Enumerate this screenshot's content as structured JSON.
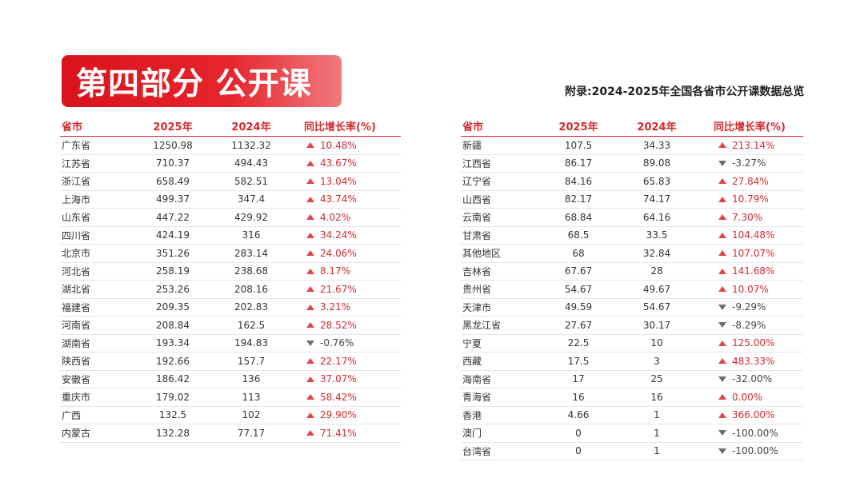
{
  "banner": {
    "title": "第四部分 公开课"
  },
  "subtitle": "附录:2024-2025年全国各省市公开课数据总览",
  "columns": {
    "name": "省市",
    "y2025": "2025年",
    "y2024": "2024年",
    "rate": "同比增长率(%)"
  },
  "colors": {
    "accent": "#d42a2f",
    "up_icon": "#e24449",
    "down_icon": "#6d6d6d"
  },
  "left_rows": [
    {
      "name": "广东省",
      "y2025": "1250.98",
      "y2024": "1132.32",
      "rate": "10.48%",
      "trend": "up"
    },
    {
      "name": "江苏省",
      "y2025": "710.37",
      "y2024": "494.43",
      "rate": "43.67%",
      "trend": "up"
    },
    {
      "name": "浙江省",
      "y2025": "658.49",
      "y2024": "582.51",
      "rate": "13.04%",
      "trend": "up"
    },
    {
      "name": "上海市",
      "y2025": "499.37",
      "y2024": "347.4",
      "rate": "43.74%",
      "trend": "up"
    },
    {
      "name": "山东省",
      "y2025": "447.22",
      "y2024": "429.92",
      "rate": "4.02%",
      "trend": "up"
    },
    {
      "name": "四川省",
      "y2025": "424.19",
      "y2024": "316",
      "rate": "34.24%",
      "trend": "up"
    },
    {
      "name": "北京市",
      "y2025": "351.26",
      "y2024": "283.14",
      "rate": "24.06%",
      "trend": "up"
    },
    {
      "name": "河北省",
      "y2025": "258.19",
      "y2024": "238.68",
      "rate": "8.17%",
      "trend": "up"
    },
    {
      "name": "湖北省",
      "y2025": "253.26",
      "y2024": "208.16",
      "rate": "21.67%",
      "trend": "up"
    },
    {
      "name": "福建省",
      "y2025": "209.35",
      "y2024": "202.83",
      "rate": "3.21%",
      "trend": "up"
    },
    {
      "name": "河南省",
      "y2025": "208.84",
      "y2024": "162.5",
      "rate": "28.52%",
      "trend": "up"
    },
    {
      "name": "湖南省",
      "y2025": "193.34",
      "y2024": "194.83",
      "rate": "-0.76%",
      "trend": "down"
    },
    {
      "name": "陕西省",
      "y2025": "192.66",
      "y2024": "157.7",
      "rate": "22.17%",
      "trend": "up"
    },
    {
      "name": "安徽省",
      "y2025": "186.42",
      "y2024": "136",
      "rate": "37.07%",
      "trend": "up"
    },
    {
      "name": "重庆市",
      "y2025": "179.02",
      "y2024": "113",
      "rate": "58.42%",
      "trend": "up"
    },
    {
      "name": "广西",
      "y2025": "132.5",
      "y2024": "102",
      "rate": "29.90%",
      "trend": "up"
    },
    {
      "name": "内蒙古",
      "y2025": "132.28",
      "y2024": "77.17",
      "rate": "71.41%",
      "trend": "up"
    }
  ],
  "right_rows": [
    {
      "name": "新疆",
      "y2025": "107.5",
      "y2024": "34.33",
      "rate": "213.14%",
      "trend": "up"
    },
    {
      "name": "江西省",
      "y2025": "86.17",
      "y2024": "89.08",
      "rate": "-3.27%",
      "trend": "down"
    },
    {
      "name": "辽宁省",
      "y2025": "84.16",
      "y2024": "65.83",
      "rate": "27.84%",
      "trend": "up"
    },
    {
      "name": "山西省",
      "y2025": "82.17",
      "y2024": "74.17",
      "rate": "10.79%",
      "trend": "up"
    },
    {
      "name": "云南省",
      "y2025": "68.84",
      "y2024": "64.16",
      "rate": "7.30%",
      "trend": "up"
    },
    {
      "name": "甘肃省",
      "y2025": "68.5",
      "y2024": "33.5",
      "rate": "104.48%",
      "trend": "up"
    },
    {
      "name": "其他地区",
      "y2025": "68",
      "y2024": "32.84",
      "rate": "107.07%",
      "trend": "up"
    },
    {
      "name": "吉林省",
      "y2025": "67.67",
      "y2024": "28",
      "rate": "141.68%",
      "trend": "up"
    },
    {
      "name": "贵州省",
      "y2025": "54.67",
      "y2024": "49.67",
      "rate": "10.07%",
      "trend": "up"
    },
    {
      "name": "天津市",
      "y2025": "49.59",
      "y2024": "54.67",
      "rate": "-9.29%",
      "trend": "down"
    },
    {
      "name": "黑龙江省",
      "y2025": "27.67",
      "y2024": "30.17",
      "rate": "-8.29%",
      "trend": "down"
    },
    {
      "name": "宁夏",
      "y2025": "22.5",
      "y2024": "10",
      "rate": "125.00%",
      "trend": "up"
    },
    {
      "name": "西藏",
      "y2025": "17.5",
      "y2024": "3",
      "rate": "483.33%",
      "trend": "up"
    },
    {
      "name": "海南省",
      "y2025": "17",
      "y2024": "25",
      "rate": "-32.00%",
      "trend": "down"
    },
    {
      "name": "青海省",
      "y2025": "16",
      "y2024": "16",
      "rate": "0.00%",
      "trend": "up"
    },
    {
      "name": "香港",
      "y2025": "4.66",
      "y2024": "1",
      "rate": "366.00%",
      "trend": "up"
    },
    {
      "name": "澳门",
      "y2025": "0",
      "y2024": "1",
      "rate": "-100.00%",
      "trend": "down"
    },
    {
      "name": "台湾省",
      "y2025": "0",
      "y2024": "1",
      "rate": "-100.00%",
      "trend": "down"
    }
  ]
}
